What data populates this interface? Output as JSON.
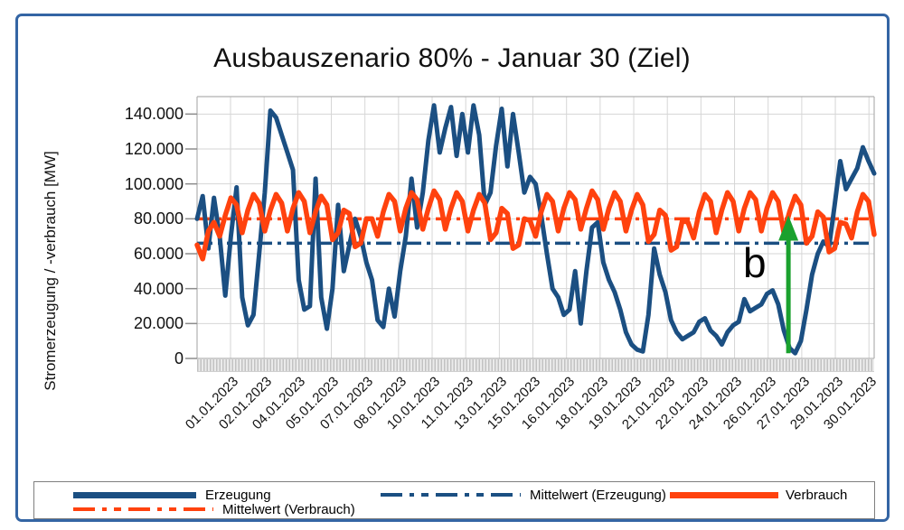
{
  "title": "Ausbauszenario 80% - Januar 30 (Ziel)",
  "annotation": {
    "label": "b"
  },
  "colors": {
    "erzeugung_blue": "#1b4f82",
    "verbrauch_orange": "#ff420e",
    "arrow_green": "#1aa12e",
    "frame_border_blue": "#3465a4",
    "gridline_gray": "#d6d6d6",
    "plot_border_gray": "#b0b0b0"
  },
  "y_axis": {
    "title": "Stromerzeugung / -verbrauch [MW]",
    "tick_labels": [
      "140.000",
      "120.000",
      "100.000",
      "80.000",
      "60.000",
      "40.000",
      "20.000",
      "0"
    ],
    "tick_values": [
      140000,
      120000,
      100000,
      80000,
      60000,
      40000,
      20000,
      0
    ]
  },
  "x_axis": {
    "tick_labels": [
      "01.01.2023",
      "02.01.2023",
      "04.01.2023",
      "05.01.2023",
      "07.01.2023",
      "08.01.2023",
      "10.01.2023",
      "11.01.2023",
      "13.01.2023",
      "15.01.2023",
      "16.01.2023",
      "18.01.2023",
      "19.01.2023",
      "21.01.2023",
      "22.01.2023",
      "24.01.2023",
      "26.01.2023",
      "27.01.2023",
      "29.01.2023",
      "30.01.2023"
    ]
  },
  "legend": {
    "items": [
      {
        "label": "Erzeugung",
        "color": "#1b4f82",
        "style": "solid"
      },
      {
        "label": "Mittelwert (Erzeugung)",
        "color": "#1b4f82",
        "style": "dash-dot"
      },
      {
        "label": "Verbrauch",
        "color": "#ff420e",
        "style": "solid"
      },
      {
        "label": "Mittelwert (Verbrauch)",
        "color": "#ff420e",
        "style": "dash-dot"
      }
    ]
  },
  "chart_data": {
    "type": "line",
    "title": "Ausbauszenario 80% - Januar 30 (Ziel)",
    "ylabel": "Stromerzeugung / -verbrauch [MW]",
    "ylim": [
      0,
      150000
    ],
    "yticks": [
      0,
      20000,
      40000,
      60000,
      80000,
      100000,
      120000,
      140000
    ],
    "grid": true,
    "legend_position": "bottom",
    "x_start_day": 1,
    "x_end_day": 31,
    "sample_interval_days": 0.25,
    "xtick_labels": [
      "01.01.2023",
      "02.01.2023",
      "04.01.2023",
      "05.01.2023",
      "07.01.2023",
      "08.01.2023",
      "10.01.2023",
      "11.01.2023",
      "13.01.2023",
      "15.01.2023",
      "16.01.2023",
      "18.01.2023",
      "19.01.2023",
      "21.01.2023",
      "22.01.2023",
      "24.01.2023",
      "26.01.2023",
      "27.01.2023",
      "29.01.2023",
      "30.01.2023"
    ],
    "series": [
      {
        "name": "Erzeugung",
        "color": "#1b4f82",
        "style": "solid",
        "stroke_width": 5,
        "values_mw": [
          80000,
          93000,
          63000,
          92000,
          70000,
          36000,
          70000,
          98000,
          35000,
          19000,
          25000,
          60000,
          95000,
          142000,
          138000,
          128000,
          118000,
          108000,
          45000,
          28000,
          30000,
          103000,
          35000,
          17000,
          40000,
          88000,
          50000,
          65000,
          80000,
          70000,
          55000,
          45000,
          22000,
          18000,
          40000,
          24000,
          50000,
          70000,
          103000,
          75000,
          95000,
          125000,
          145000,
          118000,
          132000,
          144000,
          116000,
          140000,
          118000,
          145000,
          128000,
          88000,
          95000,
          122000,
          143000,
          110000,
          140000,
          118000,
          95000,
          104000,
          100000,
          82000,
          60000,
          40000,
          35000,
          25000,
          28000,
          50000,
          20000,
          50000,
          75000,
          78000,
          55000,
          45000,
          38000,
          28000,
          15000,
          8000,
          5000,
          4000,
          25000,
          63000,
          48000,
          38000,
          22000,
          15000,
          11000,
          13000,
          15000,
          21000,
          23000,
          16000,
          13000,
          8000,
          15000,
          19000,
          21000,
          34000,
          27000,
          29000,
          31000,
          37000,
          39000,
          31000,
          16000,
          6000,
          3000,
          10000,
          28000,
          48000,
          60000,
          67000,
          64000,
          88000,
          113000,
          97000,
          103000,
          109000,
          121000,
          113000,
          106000
        ]
      },
      {
        "name": "Mittelwert (Erzeugung)",
        "color": "#1b4f82",
        "style": "dash-dot",
        "stroke_width": 3.5,
        "constant_value_mw": 66000
      },
      {
        "name": "Verbrauch",
        "color": "#ff420e",
        "style": "solid",
        "stroke_width": 5.5,
        "values_mw": [
          65000,
          57000,
          73000,
          78000,
          70000,
          82000,
          92000,
          88000,
          72000,
          85000,
          94000,
          89000,
          73000,
          85000,
          94000,
          89000,
          73000,
          86000,
          95000,
          90000,
          72000,
          84000,
          93000,
          88000,
          68000,
          72000,
          85000,
          83000,
          64000,
          66000,
          80000,
          80000,
          70000,
          84000,
          94000,
          90000,
          73000,
          86000,
          95000,
          91000,
          74000,
          86000,
          96000,
          91000,
          74000,
          86000,
          95000,
          90000,
          73000,
          85000,
          94000,
          89000,
          68000,
          72000,
          86000,
          83000,
          63000,
          65000,
          80000,
          79000,
          70000,
          84000,
          94000,
          90000,
          73000,
          86000,
          95000,
          91000,
          74000,
          86000,
          96000,
          91000,
          74000,
          86000,
          95000,
          90000,
          73000,
          85000,
          94000,
          88000,
          67000,
          71000,
          85000,
          82000,
          62000,
          64000,
          79000,
          78000,
          69000,
          84000,
          94000,
          90000,
          72000,
          85000,
          95000,
          90000,
          73000,
          86000,
          95000,
          91000,
          73000,
          86000,
          95000,
          90000,
          72000,
          84000,
          93000,
          88000,
          66000,
          70000,
          84000,
          81000,
          61000,
          63000,
          78000,
          77000,
          69000,
          84000,
          94000,
          90000,
          71000
        ]
      },
      {
        "name": "Mittelwert (Verbrauch)",
        "color": "#ff420e",
        "style": "dash-dot",
        "stroke_width": 3.5,
        "constant_value_mw": 80000
      }
    ],
    "annotation": {
      "label": "b",
      "x_day": 27.2,
      "value_from_mw": 3000,
      "value_to_mw": 82000,
      "color": "#1aa12e"
    }
  }
}
